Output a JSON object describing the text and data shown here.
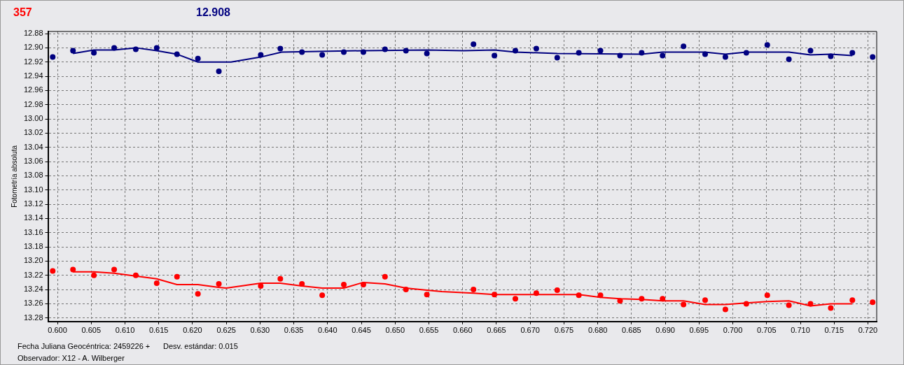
{
  "chart_data": {
    "type": "scatter",
    "title": "357",
    "subtitle": "12.908",
    "ylabel": "Fotometría absoluta",
    "annotations": [
      "Fecha Juliana Geocéntrica: 2459226 +",
      "Desv. estándar: 0.015",
      "Observador: X12 - A. Wilberger"
    ],
    "xlim": [
      0.5986,
      0.7213
    ],
    "ylim": [
      13.285,
      12.877
    ],
    "xticks": [
      {
        "value": 0.6,
        "label": "0.600"
      },
      {
        "value": 0.605,
        "label": "0.605"
      },
      {
        "value": 0.61,
        "label": "0.610"
      },
      {
        "value": 0.615,
        "label": "0.615"
      },
      {
        "value": 0.62,
        "label": "0.620"
      },
      {
        "value": 0.625,
        "label": "0.625"
      },
      {
        "value": 0.63,
        "label": "0.630"
      },
      {
        "value": 0.635,
        "label": "0.635"
      },
      {
        "value": 0.64,
        "label": "0.640"
      },
      {
        "value": 0.645,
        "label": "0.645"
      },
      {
        "value": 0.65,
        "label": "0.650"
      },
      {
        "value": 0.655,
        "label": "0.655"
      },
      {
        "value": 0.66,
        "label": "0.660"
      },
      {
        "value": 0.665,
        "label": "0.665"
      },
      {
        "value": 0.67,
        "label": "0.670"
      },
      {
        "value": 0.675,
        "label": "0.675"
      },
      {
        "value": 0.68,
        "label": "0.680"
      },
      {
        "value": 0.685,
        "label": "0.685"
      },
      {
        "value": 0.69,
        "label": "0.690"
      },
      {
        "value": 0.695,
        "label": "0.695"
      },
      {
        "value": 0.7,
        "label": "0.700"
      },
      {
        "value": 0.705,
        "label": "0.705"
      },
      {
        "value": 0.71,
        "label": "0.710"
      },
      {
        "value": 0.715,
        "label": "0.715"
      },
      {
        "value": 0.72,
        "label": "0.720"
      }
    ],
    "yticks": [
      12.88,
      {
        "value": 12.9,
        "label": "12.90"
      },
      12.92,
      12.94,
      12.96,
      12.98,
      {
        "value": 13,
        "label": "13.00"
      },
      13.02,
      13.04,
      13.06,
      13.08,
      {
        "value": 13.1,
        "label": "13.10"
      },
      13.12,
      13.14,
      13.16,
      13.18,
      {
        "value": 13.2,
        "label": "13.20"
      },
      13.22,
      13.24,
      13.26,
      13.28
    ],
    "grid": true,
    "series": [
      {
        "type": "scatter",
        "color": "#000080",
        "marker": "circle",
        "x": [
          0.5993,
          0.6023,
          0.6054,
          0.6084,
          0.6116,
          0.6147,
          0.6177,
          0.6208,
          0.6239,
          0.6301,
          0.633,
          0.6362,
          0.6392,
          0.6424,
          0.6453,
          0.6485,
          0.6516,
          0.6547,
          0.6616,
          0.6647,
          0.6678,
          0.6709,
          0.674,
          0.6772,
          0.6804,
          0.6833,
          0.6865,
          0.6896,
          0.6927,
          0.6959,
          0.6989,
          0.702,
          0.7051,
          0.7083,
          0.7115,
          0.7145,
          0.7177,
          0.7207
        ],
        "values": [
          12.913,
          12.904,
          12.907,
          12.9,
          12.902,
          12.9,
          12.909,
          12.915,
          12.933,
          12.91,
          12.901,
          12.906,
          12.91,
          12.906,
          12.906,
          12.902,
          12.904,
          12.908,
          12.895,
          12.911,
          12.904,
          12.901,
          12.914,
          12.907,
          12.904,
          12.911,
          12.907,
          12.911,
          12.898,
          12.909,
          12.913,
          12.907,
          12.896,
          12.916,
          12.904,
          12.912,
          12.907,
          12.913
        ]
      },
      {
        "type": "line",
        "color": "#000080",
        "marker": "none",
        "x": [
          0.6023,
          0.6054,
          0.6084,
          0.6116,
          0.6147,
          0.6177,
          0.6208,
          0.6257,
          0.6301,
          0.6332,
          0.6453,
          0.6547,
          0.6601,
          0.6647,
          0.6678,
          0.674,
          0.6865,
          0.6896,
          0.6959,
          0.6989,
          0.702,
          0.7083,
          0.7115,
          0.7145,
          0.7177
        ],
        "values": [
          12.908,
          12.903,
          12.903,
          12.9,
          12.904,
          12.909,
          12.92,
          12.92,
          12.913,
          12.906,
          12.904,
          12.903,
          12.904,
          12.903,
          12.906,
          12.908,
          12.909,
          12.906,
          12.906,
          12.909,
          12.906,
          12.906,
          12.91,
          12.909,
          12.911
        ]
      },
      {
        "type": "scatter",
        "color": "#ff0000",
        "marker": "circle",
        "x": [
          0.5993,
          0.6023,
          0.6054,
          0.6084,
          0.6116,
          0.6147,
          0.6177,
          0.6208,
          0.6239,
          0.6301,
          0.633,
          0.6362,
          0.6392,
          0.6424,
          0.6453,
          0.6485,
          0.6516,
          0.6547,
          0.6616,
          0.6647,
          0.6678,
          0.6709,
          0.674,
          0.6772,
          0.6804,
          0.6833,
          0.6865,
          0.6896,
          0.6927,
          0.6959,
          0.6989,
          0.702,
          0.7051,
          0.7083,
          0.7115,
          0.7145,
          0.7177,
          0.7207
        ],
        "values": [
          13.214,
          13.212,
          13.22,
          13.212,
          13.22,
          13.231,
          13.222,
          13.246,
          13.232,
          13.235,
          13.225,
          13.232,
          13.248,
          13.233,
          13.233,
          13.222,
          13.24,
          13.247,
          13.24,
          13.247,
          13.253,
          13.245,
          13.241,
          13.248,
          13.248,
          13.256,
          13.253,
          13.253,
          13.261,
          13.255,
          13.268,
          13.26,
          13.248,
          13.262,
          13.26,
          13.266,
          13.255,
          13.258
        ]
      },
      {
        "type": "line",
        "color": "#ff0000",
        "marker": "none",
        "x": [
          0.6023,
          0.6054,
          0.6084,
          0.6147,
          0.6177,
          0.6208,
          0.6239,
          0.625,
          0.6301,
          0.633,
          0.6362,
          0.6392,
          0.6424,
          0.6453,
          0.6485,
          0.6516,
          0.6547,
          0.6569,
          0.6616,
          0.6647,
          0.6678,
          0.6772,
          0.6804,
          0.6833,
          0.6865,
          0.6896,
          0.6927,
          0.6959,
          0.6989,
          0.702,
          0.7051,
          0.7083,
          0.7115,
          0.7145,
          0.7177
        ],
        "values": [
          13.215,
          13.215,
          13.217,
          13.225,
          13.233,
          13.233,
          13.237,
          13.238,
          13.231,
          13.231,
          13.235,
          13.238,
          13.238,
          13.23,
          13.232,
          13.238,
          13.241,
          13.243,
          13.245,
          13.247,
          13.247,
          13.247,
          13.251,
          13.253,
          13.254,
          13.256,
          13.256,
          13.261,
          13.261,
          13.259,
          13.257,
          13.256,
          13.263,
          13.26,
          13.26
        ]
      }
    ]
  }
}
